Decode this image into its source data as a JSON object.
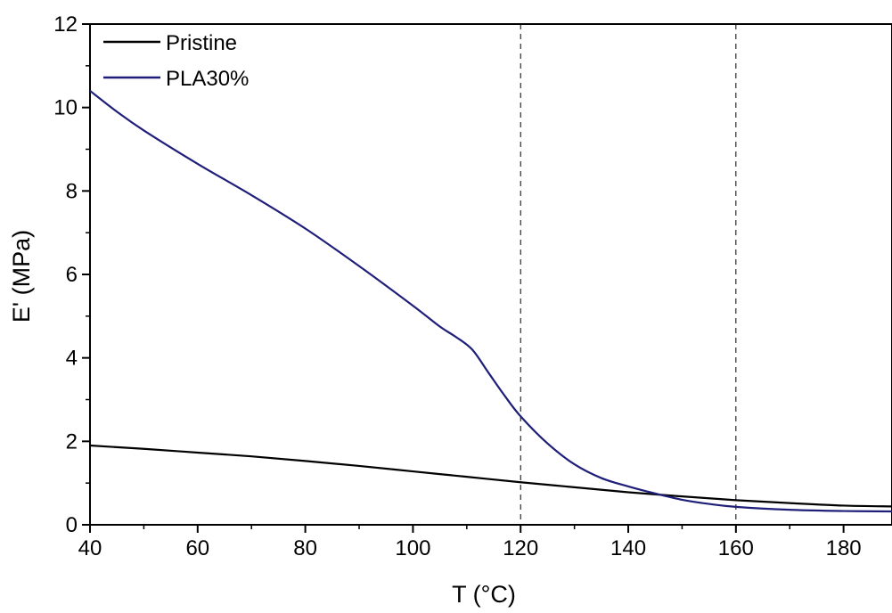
{
  "chart_data": {
    "type": "line",
    "title": "",
    "xlabel": "T (°C)",
    "ylabel": "E' (MPa)",
    "xlim": [
      40,
      189
    ],
    "ylim": [
      0,
      12
    ],
    "x_ticks": [
      40,
      60,
      80,
      100,
      120,
      140,
      160,
      180
    ],
    "y_ticks": [
      0,
      2,
      4,
      6,
      8,
      10,
      12
    ],
    "x_ticks_labels": [
      "40",
      "60",
      "80",
      "100",
      "120",
      "140",
      "160",
      "180"
    ],
    "y_ticks_labels": [
      "0",
      "2",
      "4",
      "6",
      "8",
      "10",
      "12"
    ],
    "grid": false,
    "legend_position": "top-left",
    "reference_lines_x": [
      120,
      160
    ],
    "series": [
      {
        "name": "Pristine",
        "color": "#000000",
        "points": [
          [
            40,
            1.9
          ],
          [
            50,
            1.82
          ],
          [
            60,
            1.73
          ],
          [
            70,
            1.64
          ],
          [
            80,
            1.53
          ],
          [
            90,
            1.41
          ],
          [
            100,
            1.28
          ],
          [
            110,
            1.15
          ],
          [
            120,
            1.02
          ],
          [
            130,
            0.9
          ],
          [
            140,
            0.78
          ],
          [
            150,
            0.68
          ],
          [
            160,
            0.59
          ],
          [
            170,
            0.52
          ],
          [
            180,
            0.46
          ],
          [
            189,
            0.44
          ]
        ]
      },
      {
        "name": "PLA30%",
        "color": "#1f1f7a",
        "points": [
          [
            40,
            10.4
          ],
          [
            45,
            9.9
          ],
          [
            50,
            9.45
          ],
          [
            60,
            8.65
          ],
          [
            70,
            7.9
          ],
          [
            80,
            7.1
          ],
          [
            90,
            6.2
          ],
          [
            100,
            5.25
          ],
          [
            105,
            4.75
          ],
          [
            108,
            4.5
          ],
          [
            111,
            4.2
          ],
          [
            114,
            3.65
          ],
          [
            117,
            3.1
          ],
          [
            120,
            2.6
          ],
          [
            125,
            1.95
          ],
          [
            130,
            1.45
          ],
          [
            135,
            1.12
          ],
          [
            140,
            0.92
          ],
          [
            145,
            0.75
          ],
          [
            150,
            0.6
          ],
          [
            155,
            0.5
          ],
          [
            160,
            0.43
          ],
          [
            170,
            0.36
          ],
          [
            180,
            0.33
          ],
          [
            189,
            0.32
          ]
        ]
      }
    ]
  }
}
